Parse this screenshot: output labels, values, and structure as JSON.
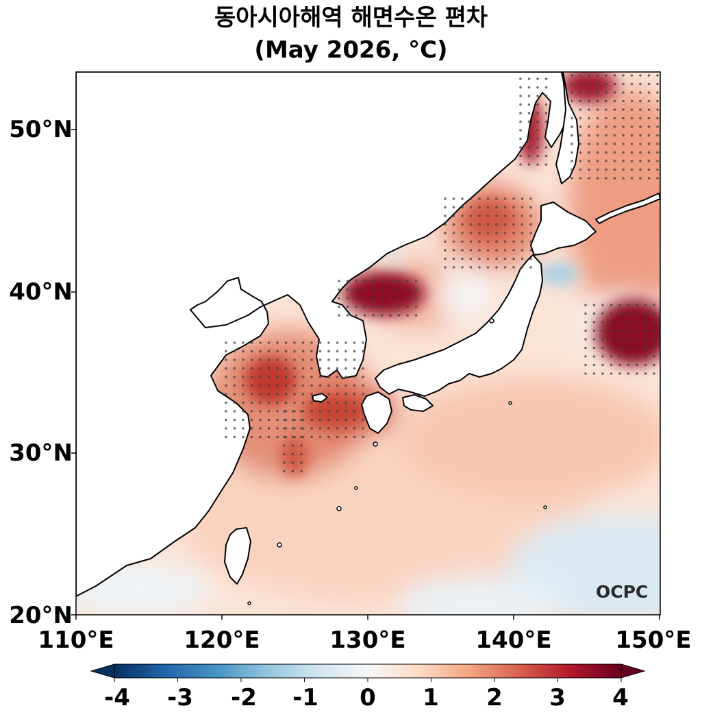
{
  "title": {
    "line1": "동아시아해역 해면수온 편차",
    "line2": "(May 2026, °C)"
  },
  "map": {
    "lon_range": [
      110,
      150
    ],
    "lat_range": [
      20,
      53.5
    ],
    "x_ticks": [
      "110°E",
      "120°E",
      "130°E",
      "140°E",
      "150°E"
    ],
    "y_ticks": [
      "20°N",
      "30°N",
      "40°N",
      "50°N"
    ],
    "logo_text": "OCPC",
    "land_color": "#ffffff",
    "coastline_color": "#000000",
    "significance_marker": "stippled dots"
  },
  "colorbar": {
    "min": -4,
    "max": 4,
    "step": 0.2,
    "labels": [
      "-4",
      "-3",
      "-2",
      "-1",
      "0",
      "1",
      "2",
      "3",
      "4"
    ],
    "extend": "both",
    "colormap": "RdBu_r",
    "colors": [
      "#053061",
      "#2166ac",
      "#4393c3",
      "#92c5de",
      "#d1e5f0",
      "#f7f7f7",
      "#fddbc7",
      "#f4a582",
      "#d6604d",
      "#b2182b",
      "#67001f"
    ]
  }
}
